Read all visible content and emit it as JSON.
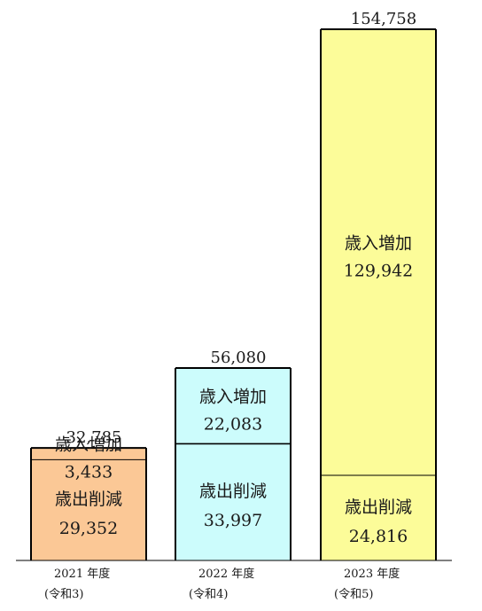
{
  "chart_data": {
    "type": "bar",
    "stacked": true,
    "categories": [
      {
        "year": "2021 年度",
        "era": "(令和3)"
      },
      {
        "year": "2022 年度",
        "era": "(令和4)"
      },
      {
        "year": "2023 年度",
        "era": "(令和5)"
      }
    ],
    "series": [
      {
        "name": "歳出削減",
        "values": [
          "29,352",
          "33,997",
          "24,816"
        ]
      },
      {
        "name": "歳入増加",
        "values": [
          "3,433",
          "22,083",
          "129,942"
        ]
      }
    ],
    "totals": [
      "32,785",
      "56,080",
      "154,758"
    ],
    "colors": [
      "#fbc896",
      "#ccfcfc",
      "#fcfc99"
    ],
    "segment_line": "#000000"
  }
}
